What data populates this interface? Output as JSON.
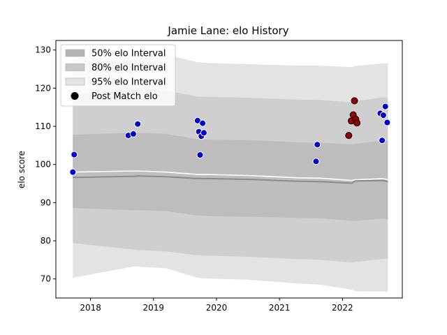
{
  "chart_data": {
    "type": "scatter",
    "title": "Jamie Lane: elo History",
    "xlabel": "",
    "ylabel": "elo score",
    "xlim": [
      2017.45,
      2022.95
    ],
    "ylim": [
      65,
      132.5
    ],
    "xticks": [
      2018,
      2019,
      2020,
      2021,
      2022
    ],
    "yticks": [
      70,
      80,
      90,
      100,
      110,
      120,
      130
    ],
    "grid": false,
    "legend_position": "top-left",
    "legend": [
      {
        "label": "50% elo Interval",
        "kind": "band",
        "color": "#b4b4b4"
      },
      {
        "label": "80% elo Interval",
        "kind": "band",
        "color": "#c8c8c8"
      },
      {
        "label": "95% elo Interval",
        "kind": "band",
        "color": "#e3e3e3"
      },
      {
        "label": "Post Match elo",
        "kind": "marker",
        "color": "#000000"
      }
    ],
    "bands": {
      "x": [
        2017.72,
        2018.7,
        2018.75,
        2019.2,
        2019.7,
        2019.85,
        2020.5,
        2021.3,
        2021.65,
        2022.15,
        2022.2,
        2022.65,
        2022.72
      ],
      "upper95": [
        127.7,
        129.3,
        129.5,
        128.8,
        126.8,
        126.6,
        126.3,
        125.9,
        125.9,
        125.5,
        125.8,
        126.5,
        126.5
      ],
      "lower95": [
        70.3,
        73.3,
        73.2,
        72.8,
        70.3,
        70.1,
        69.8,
        68.8,
        68.5,
        67.2,
        66.8,
        66.7,
        66.6
      ],
      "upper80": [
        118.4,
        119.7,
        119.8,
        119.4,
        117.8,
        117.7,
        117.5,
        117.0,
        116.9,
        116.3,
        116.6,
        117.6,
        117.5
      ],
      "lower80": [
        79.4,
        77.7,
        77.6,
        77.2,
        76.2,
        76.1,
        75.8,
        75.2,
        75.0,
        74.3,
        74.4,
        75.3,
        75.3
      ],
      "upper50": [
        107.8,
        108.3,
        108.3,
        108.0,
        106.6,
        106.5,
        106.4,
        105.8,
        105.7,
        105.3,
        105.4,
        106.3,
        106.2
      ],
      "lower50": [
        88.6,
        88.0,
        88.0,
        87.8,
        86.6,
        86.5,
        86.3,
        86.0,
        85.9,
        85.2,
        85.2,
        85.8,
        85.6
      ],
      "median": [
        96.6,
        96.9,
        97.0,
        96.8,
        96.3,
        96.3,
        96.1,
        95.6,
        95.5,
        95.1,
        95.7,
        95.8,
        95.5
      ],
      "mean": [
        98.0,
        98.3,
        98.3,
        98.0,
        97.4,
        97.4,
        97.1,
        96.5,
        96.4,
        95.8,
        96.0,
        96.3,
        96.0
      ]
    },
    "series": [
      {
        "name": "Post Match elo",
        "points": [
          {
            "x": 2017.72,
            "y": 98.0,
            "color": "#0000cc"
          },
          {
            "x": 2017.74,
            "y": 102.6,
            "color": "#0000cc"
          },
          {
            "x": 2018.6,
            "y": 107.6,
            "color": "#0000cc"
          },
          {
            "x": 2018.68,
            "y": 108.0,
            "color": "#0000cc"
          },
          {
            "x": 2018.75,
            "y": 110.6,
            "color": "#0000cc"
          },
          {
            "x": 2019.7,
            "y": 111.5,
            "color": "#0000cc"
          },
          {
            "x": 2019.72,
            "y": 108.6,
            "color": "#0000cc"
          },
          {
            "x": 2019.74,
            "y": 102.5,
            "color": "#0000cc"
          },
          {
            "x": 2019.76,
            "y": 107.4,
            "color": "#0000cc"
          },
          {
            "x": 2019.78,
            "y": 110.8,
            "color": "#0000cc"
          },
          {
            "x": 2019.8,
            "y": 108.3,
            "color": "#0000cc"
          },
          {
            "x": 2021.58,
            "y": 100.8,
            "color": "#0000cc"
          },
          {
            "x": 2021.6,
            "y": 105.2,
            "color": "#0000cc"
          },
          {
            "x": 2022.1,
            "y": 107.6,
            "color": "#990000"
          },
          {
            "x": 2022.14,
            "y": 111.4,
            "color": "#990000"
          },
          {
            "x": 2022.17,
            "y": 113.0,
            "color": "#990000"
          },
          {
            "x": 2022.19,
            "y": 116.7,
            "color": "#990000"
          },
          {
            "x": 2022.21,
            "y": 111.9,
            "color": "#990000"
          },
          {
            "x": 2022.23,
            "y": 110.9,
            "color": "#990000"
          },
          {
            "x": 2022.6,
            "y": 113.4,
            "color": "#0000cc"
          },
          {
            "x": 2022.63,
            "y": 106.3,
            "color": "#0000cc"
          },
          {
            "x": 2022.65,
            "y": 112.9,
            "color": "#0000cc"
          },
          {
            "x": 2022.68,
            "y": 115.2,
            "color": "#0000cc"
          },
          {
            "x": 2022.71,
            "y": 111.0,
            "color": "#0000cc"
          }
        ]
      }
    ]
  }
}
